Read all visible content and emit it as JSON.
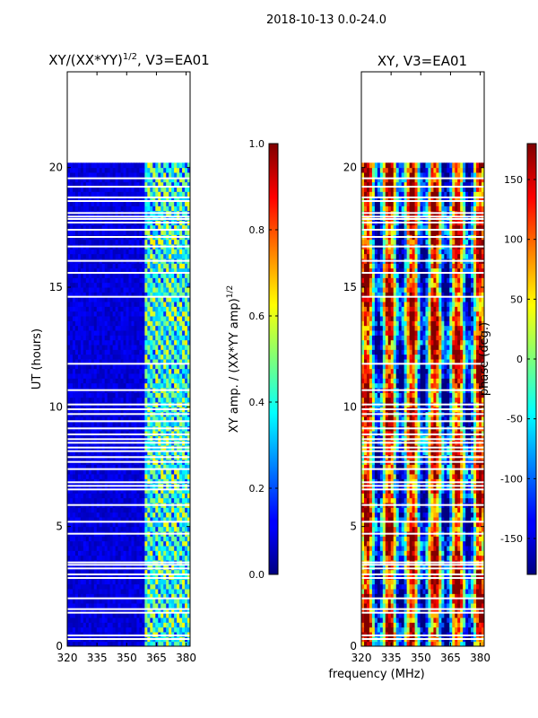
{
  "figure": {
    "suptitle": "2018-10-13 0.0-24.0"
  },
  "chart_data": [
    {
      "type": "heatmap",
      "title": "XY/(XX*YY)",
      "title_exponent": "1/2",
      "title_suffix": ", V3=EA01",
      "xlabel": "",
      "ylabel": "UT (hours)",
      "xlim": [
        320,
        382
      ],
      "ylim": [
        0,
        24
      ],
      "x_ticks": [
        320,
        335,
        350,
        365,
        380
      ],
      "y_ticks": [
        0,
        5,
        10,
        15,
        20
      ],
      "data_extent_y": [
        0,
        20.2
      ],
      "rfi_band_mhz": [
        359,
        382
      ],
      "colorbar": {
        "label": "XY amp. / (XX*YY amp)",
        "label_exponent": "1/2",
        "range": [
          0.0,
          1.0
        ],
        "ticks": [
          "0.0",
          "0.2",
          "0.4",
          "0.6",
          "0.8",
          "1.0"
        ],
        "colormap": "jet"
      }
    },
    {
      "type": "heatmap",
      "title": "XY, V3=EA01",
      "xlabel": "frequency (MHz)",
      "ylabel": "",
      "xlim": [
        320,
        382
      ],
      "ylim": [
        0,
        24
      ],
      "x_ticks": [
        320,
        335,
        350,
        365,
        380
      ],
      "y_ticks": [
        0,
        5,
        10,
        15,
        20
      ],
      "data_extent_y": [
        0,
        20.2
      ],
      "colorbar": {
        "label": "phase (deg.)",
        "range": [
          -180,
          180
        ],
        "ticks": [
          "-150",
          "-100",
          "-50",
          "0",
          "50",
          "100",
          "150"
        ],
        "colormap": "jet"
      }
    }
  ],
  "flagged_hours": [
    0.3,
    0.45,
    1.4,
    1.55,
    2.0,
    2.85,
    3.0,
    3.25,
    3.4,
    3.5,
    4.7,
    5.2,
    5.9,
    6.55,
    6.7,
    6.85,
    7.4,
    7.7,
    7.9,
    8.15,
    8.3,
    8.5,
    8.65,
    8.85,
    9.1,
    9.4,
    9.7,
    9.9,
    10.1,
    10.7,
    11.8,
    14.6,
    15.6,
    16.1,
    16.7,
    17.1,
    17.4,
    17.7,
    17.85,
    17.95,
    18.1,
    18.6,
    18.75,
    19.2,
    19.55
  ]
}
